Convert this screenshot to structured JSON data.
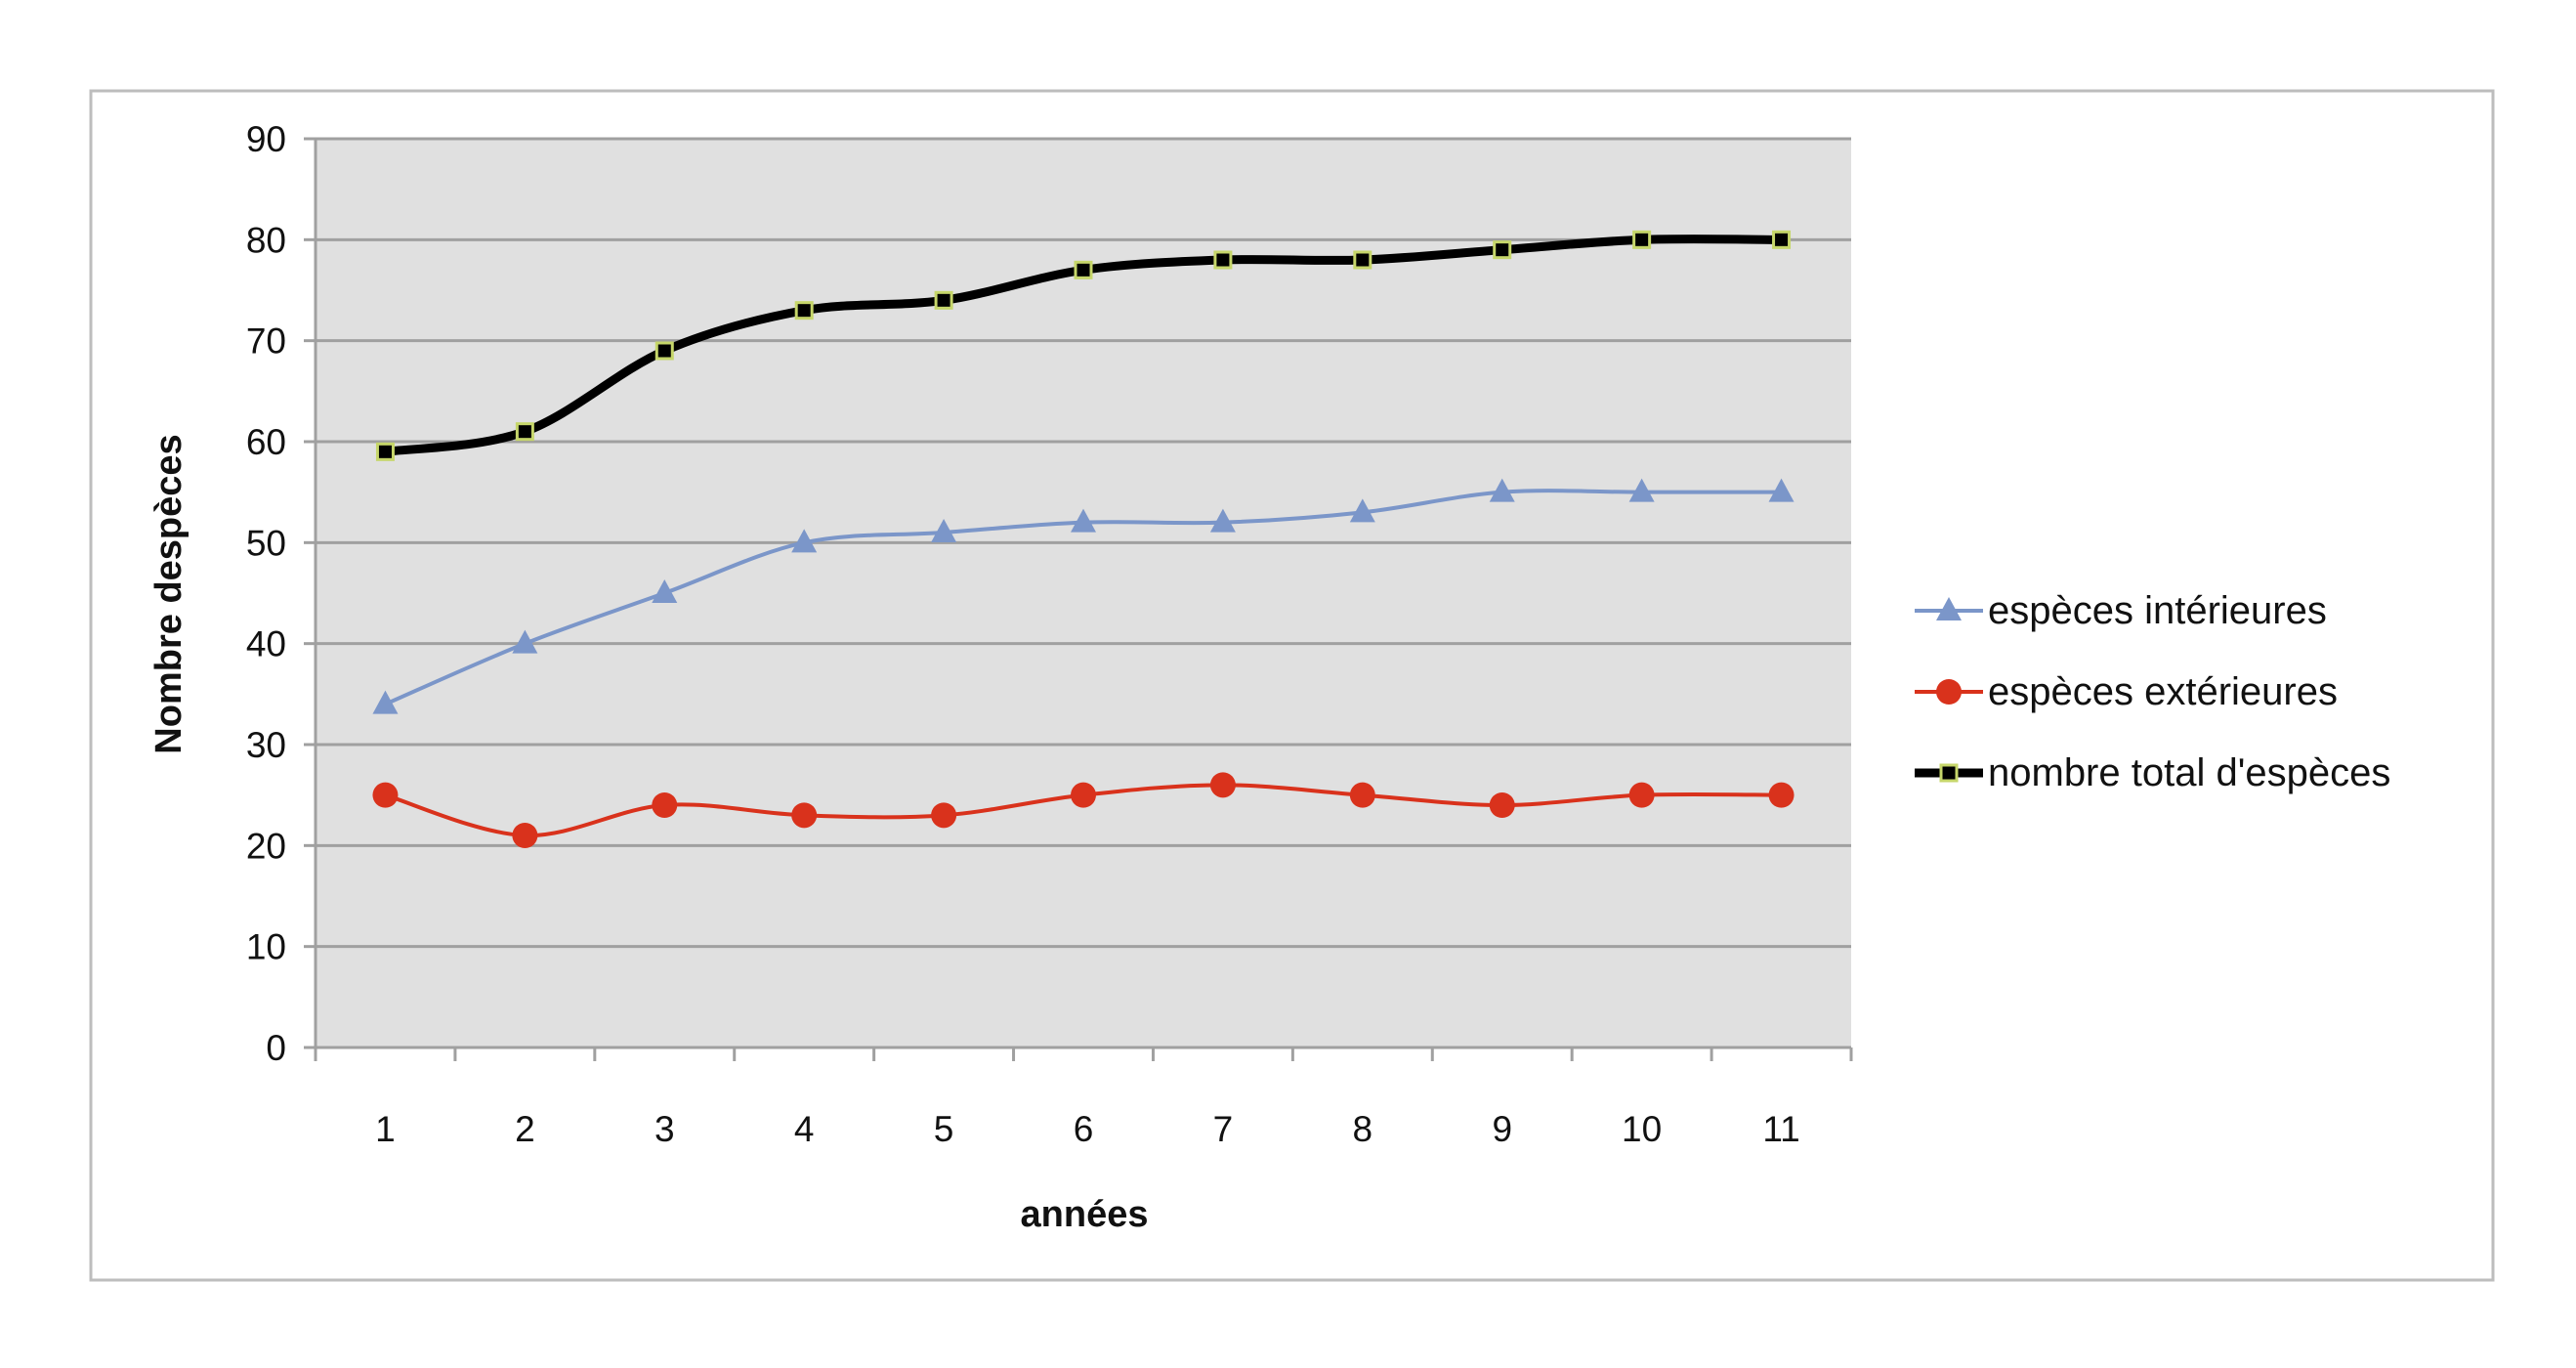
{
  "chart_data": {
    "type": "line",
    "title": "",
    "xlabel": "années",
    "ylabel": "Nombre despèces",
    "ylim": [
      0,
      90
    ],
    "yticks": [
      0,
      10,
      20,
      30,
      40,
      50,
      60,
      70,
      80,
      90
    ],
    "categories": [
      "1",
      "2",
      "3",
      "4",
      "5",
      "6",
      "7",
      "8",
      "9",
      "10",
      "11"
    ],
    "grid": true,
    "legend_position": "right",
    "series": [
      {
        "name": "espèces intérieures",
        "color": "#7b96c9",
        "marker": "triangle",
        "values": [
          34,
          40,
          45,
          50,
          51,
          52,
          52,
          53,
          55,
          55,
          55
        ]
      },
      {
        "name": "espèces extérieures",
        "color": "#d9321c",
        "marker": "circle",
        "values": [
          25,
          21,
          24,
          23,
          23,
          25,
          26,
          25,
          24,
          25,
          25
        ]
      },
      {
        "name": "nombre total d'espèces",
        "color": "#000000",
        "marker": "square",
        "values": [
          59,
          61,
          69,
          73,
          74,
          77,
          78,
          78,
          79,
          80,
          80
        ]
      }
    ]
  }
}
